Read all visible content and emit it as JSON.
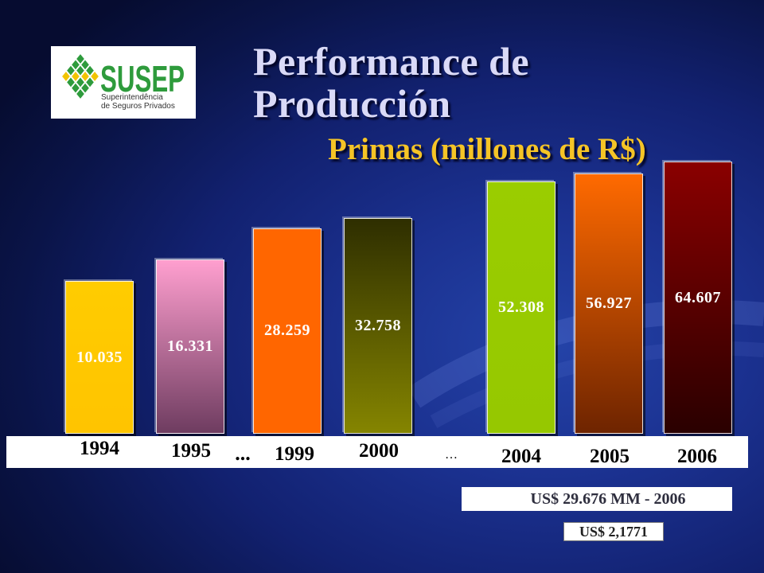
{
  "theme": {
    "title_color": "#DADAF7",
    "subtitle_color": "#F5C426",
    "strip_color": "#FFFFFF",
    "brand_green": "#2E9B3C",
    "brand_yellow": "#F2C400"
  },
  "logo": {
    "icon": "susep-diamond-logo-icon",
    "name": "SUSEP",
    "tagline_line1": "Superintendência",
    "tagline_line2": "de Seguros Privados"
  },
  "slide": {
    "title_line1": "Performance de",
    "title_line2": "Producción"
  },
  "chart_data": {
    "type": "bar",
    "title": "Primas (millones de R$)",
    "categories": [
      "1994",
      "1995",
      "1999",
      "2000",
      "2004",
      "2005",
      "2006"
    ],
    "values": [
      10035,
      16331,
      28259,
      32758,
      52308,
      56927,
      64607
    ],
    "value_labels": [
      "10.035",
      "16.331",
      "28.259",
      "32.758",
      "52.308",
      "56.927",
      "64.607"
    ],
    "axis_breaks": [
      "...",
      "…"
    ],
    "bar_colors": [
      [
        "#FFCC00",
        "#FFC400"
      ],
      [
        "#FF9FCF",
        "#6E3C60"
      ],
      [
        "#FF6600",
        "#FF6600"
      ],
      [
        "#2E2E00",
        "#858500"
      ],
      [
        "#9ACD00",
        "#96C800"
      ],
      [
        "#FF6A00",
        "#6E2400"
      ],
      [
        "#8A0000",
        "#2A0000"
      ]
    ],
    "grid": false
  },
  "footnotes": {
    "usd_total": "US$ 29.676 MM - 2006",
    "exchange_rate": "US$ 2,1771"
  }
}
